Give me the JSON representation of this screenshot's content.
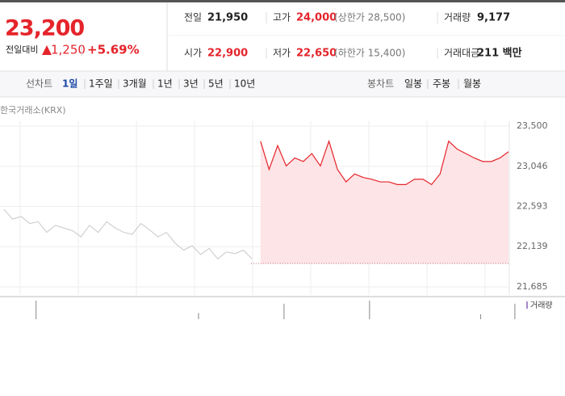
{
  "header": {
    "price": "23,200",
    "change_label": "전일대비",
    "change": "1,250",
    "change_pct": "+5.69%",
    "stats": [
      {
        "label": "전일",
        "value": "21,950"
      },
      {
        "label": "고가",
        "value": "24,000",
        "note": "(상한가 28,500)"
      },
      {
        "label": "거래량",
        "value": "9,177"
      },
      {
        "label": "시가",
        "value": "22,900"
      },
      {
        "label": "저가",
        "value": "22,650",
        "note": "(하한가 15,400)"
      },
      {
        "label": "거래대금",
        "value": "211 백만"
      }
    ]
  },
  "tabs": {
    "line_label": "선차트",
    "line_items": [
      "1일",
      "1주일",
      "3개월",
      "1년",
      "3년",
      "5년",
      "10년"
    ],
    "candle_label": "봉차트",
    "candle_items": [
      "일봉",
      "주봉",
      "월봉"
    ]
  },
  "chart_data": {
    "type": "line",
    "source": "한국거래소(KRX)",
    "ylim": [
      21685,
      23500
    ],
    "yticks": [
      {
        "value": 21685,
        "label": "21,685"
      },
      {
        "value": 22139,
        "label": "22,139"
      },
      {
        "value": 22593,
        "label": "22,593"
      },
      {
        "value": 23046,
        "label": "23,046"
      },
      {
        "value": 23500,
        "label": "23,500"
      }
    ],
    "baseline": 21950,
    "fill_color": "#fde4e6",
    "series": [
      {
        "color": "#c8c8c8",
        "values": [
          22560,
          22450,
          22480,
          22400,
          22420,
          22300,
          22380,
          22350,
          22320,
          22250,
          22380,
          22300,
          22420,
          22350,
          22300,
          22280,
          22400,
          22330,
          22250,
          22300,
          22180,
          22100,
          22150,
          22050,
          22120,
          22000,
          22080,
          22060,
          22100,
          22000,
          null,
          null,
          null,
          null,
          null,
          null,
          null,
          null,
          null,
          null,
          null,
          null,
          null,
          null,
          null,
          null,
          null,
          null,
          null,
          null,
          null,
          null,
          null,
          null,
          null,
          null,
          null,
          null,
          null,
          null
        ]
      },
      {
        "color": "#e5242b",
        "values": [
          null,
          null,
          null,
          null,
          null,
          null,
          null,
          null,
          null,
          null,
          null,
          null,
          null,
          null,
          null,
          null,
          null,
          null,
          null,
          null,
          null,
          null,
          null,
          null,
          null,
          null,
          null,
          null,
          null,
          null,
          23330,
          23010,
          23280,
          23050,
          23140,
          23100,
          23190,
          23050,
          23330,
          23010,
          22870,
          22960,
          22920,
          22900,
          22870,
          22870,
          22840,
          22840,
          22900,
          22900,
          22840,
          22960,
          23330,
          23240,
          23190,
          23140,
          23100,
          23100,
          23140,
          23210
        ]
      }
    ],
    "volume": {
      "name": "거래량",
      "color": "#a58bc9",
      "vlim": [
        0,
        30
      ],
      "values": [
        0,
        0,
        30,
        0,
        0,
        0,
        0,
        0,
        0,
        0,
        0,
        0,
        0,
        0,
        0,
        0,
        0,
        0,
        0,
        0,
        0,
        10,
        0,
        0,
        0,
        0,
        0,
        0,
        0,
        0,
        0,
        25,
        0,
        0,
        0,
        0,
        0,
        0,
        0,
        0,
        0,
        30,
        0,
        0,
        0,
        0,
        0,
        0,
        0,
        0,
        0,
        0,
        0,
        0,
        8,
        0,
        0,
        0,
        25,
        0
      ]
    }
  }
}
